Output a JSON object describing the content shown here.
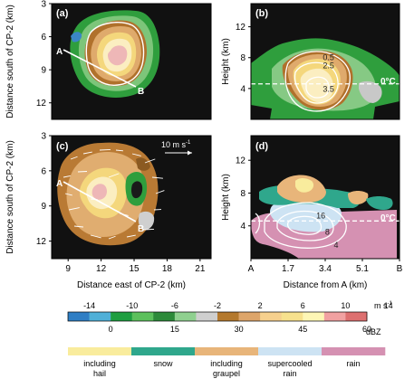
{
  "chart_data": [
    {
      "type": "heatmap",
      "panel": "(a)",
      "ylabel": "Distance south of CP-2 (km)",
      "y_ticks": [
        3,
        6,
        9,
        12
      ],
      "ylim": [
        3,
        13.5
      ],
      "xlim": [
        7.5,
        22
      ],
      "points": [
        {
          "label": "A",
          "x": 9.6,
          "y": 7.1
        },
        {
          "label": "B",
          "x": 14.6,
          "y": 9.7
        }
      ]
    },
    {
      "type": "heatmap",
      "panel": "(b)",
      "ylabel": "Height (km)",
      "y_ticks": [
        4,
        8,
        12
      ],
      "ylim": [
        0,
        15
      ],
      "contour_labels": [
        {
          "text": "0.5",
          "x": 3.55,
          "y": 7.7
        },
        {
          "text": "2.5",
          "x": 3.55,
          "y": 6.6
        },
        {
          "text": "3.5",
          "x": 3.55,
          "y": 3.6
        }
      ],
      "annotation": "0°C",
      "freezing_level_km": 4.6
    },
    {
      "type": "heatmap",
      "panel": "(c)",
      "xlabel": "Distance east of CP-2 (km)",
      "ylabel": "Distance south of CP-2 (km)",
      "x_ticks": [
        9,
        12,
        15,
        18,
        21
      ],
      "y_ticks": [
        3,
        6,
        9,
        12
      ],
      "xlim": [
        7.5,
        22
      ],
      "ylim": [
        3,
        13.5
      ],
      "vector_scale_label": "10 m s",
      "vector_scale_exponent": "-1",
      "points": [
        {
          "label": "A",
          "x": 9.6,
          "y": 7.1
        },
        {
          "label": "B",
          "x": 14.6,
          "y": 9.7
        }
      ]
    },
    {
      "type": "heatmap",
      "panel": "(d)",
      "xlabel": "Distance from A (km)",
      "ylabel": "Height (km)",
      "x_tick_labels": [
        "A",
        "1.7",
        "3.4",
        "5.1",
        "B"
      ],
      "y_ticks": [
        4,
        8,
        12
      ],
      "ylim": [
        0,
        15
      ],
      "contour_labels": [
        {
          "text": "16",
          "x": 3.2,
          "y": 4.9
        },
        {
          "text": "8",
          "x": 3.5,
          "y": 2.9
        },
        {
          "text": "4",
          "x": 3.9,
          "y": 1.3
        }
      ],
      "annotation": "0°C"
    }
  ],
  "velocity_colorbar": {
    "unit": "m s",
    "unit_exponent": "-1",
    "tick_labels": [
      "-14",
      "-10",
      "-6",
      "-2",
      "2",
      "6",
      "10",
      "14"
    ],
    "colors": [
      "#2f7ec4",
      "#50b0d8",
      "#1e9e40",
      "#5cc05c",
      "#2d8a3a",
      "#8fd08f",
      "#cfcfcf",
      "#b4792e",
      "#dda56a",
      "#f6d08d",
      "#f7e18d",
      "#fdf6b5",
      "#f1a1a1",
      "#dd6f6f"
    ]
  },
  "reflectivity_colorbar": {
    "unit": "dBZ",
    "tick_labels": [
      "0",
      "15",
      "30",
      "45",
      "60"
    ]
  },
  "hydrometeor_legend": {
    "classes": [
      {
        "label": "including hail",
        "color": "#f9ec9d"
      },
      {
        "label": "snow",
        "color": "#2fa78c"
      },
      {
        "label": "including graupel",
        "color": "#e8b57a"
      },
      {
        "label": "supercooled rain",
        "color": "#cde3f3"
      },
      {
        "label": "rain",
        "color": "#d591b2"
      }
    ]
  }
}
